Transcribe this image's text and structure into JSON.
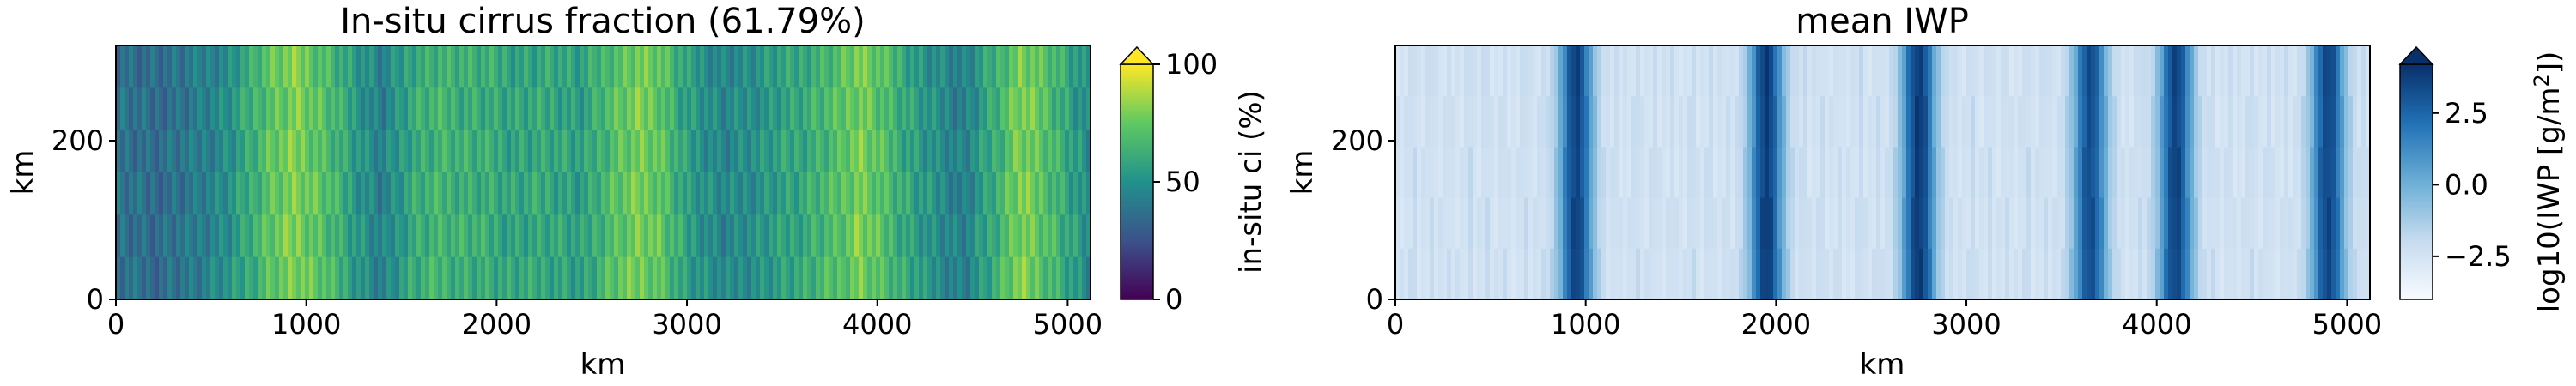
{
  "chart_data": [
    {
      "type": "heatmap",
      "title": "In-situ cirrus fraction (61.79%)",
      "xlabel": "km",
      "ylabel": "km",
      "xlim": [
        0,
        5120
      ],
      "ylim": [
        0,
        320
      ],
      "xticks": [
        "0",
        "1000",
        "2000",
        "3000",
        "4000",
        "5000"
      ],
      "yticks": [
        "0",
        "200"
      ],
      "colormap": "viridis",
      "colorbar": {
        "label": "in-situ ci (%)",
        "range": [
          0,
          100
        ],
        "ticks": [
          "0",
          "50",
          "100"
        ],
        "extend": "max"
      },
      "column_profile_x_km": [
        0,
        200,
        400,
        600,
        800,
        950,
        1100,
        1250,
        1400,
        1550,
        1700,
        1900,
        2100,
        2300,
        2450,
        2600,
        2750,
        2850,
        3000,
        3200,
        3400,
        3600,
        3800,
        3900,
        4050,
        4250,
        4450,
        4600,
        4750,
        4900,
        5120
      ],
      "column_profile_mean_pct": [
        38,
        35,
        40,
        50,
        72,
        80,
        70,
        55,
        42,
        60,
        65,
        62,
        58,
        60,
        55,
        70,
        78,
        75,
        55,
        45,
        52,
        60,
        70,
        80,
        68,
        52,
        42,
        60,
        80,
        70,
        45
      ]
    },
    {
      "type": "heatmap",
      "title": "mean IWP",
      "xlabel": "km",
      "ylabel": "km",
      "xlim": [
        0,
        5120
      ],
      "ylim": [
        0,
        320
      ],
      "xticks": [
        "0",
        "1000",
        "2000",
        "3000",
        "4000",
        "5000"
      ],
      "yticks": [
        "0",
        "200"
      ],
      "colormap": "Blues",
      "colorbar": {
        "label": "log10(IWP [g/m²])",
        "label_base": "log10(IWP [g/m",
        "label_sup": "2",
        "label_end": "])",
        "range": [
          -4,
          4.2
        ],
        "ticks": [
          "−2.5",
          "0.0",
          "2.5"
        ],
        "tick_values": [
          -2.5,
          0.0,
          2.5
        ],
        "extend": "max"
      },
      "band_centers_km": [
        950,
        1950,
        2750,
        3650,
        4100,
        4900
      ],
      "band_peak_log10_iwp": [
        3.6,
        3.8,
        3.9,
        3.3,
        3.6,
        3.5
      ],
      "background_log10_iwp": -2.5
    }
  ]
}
